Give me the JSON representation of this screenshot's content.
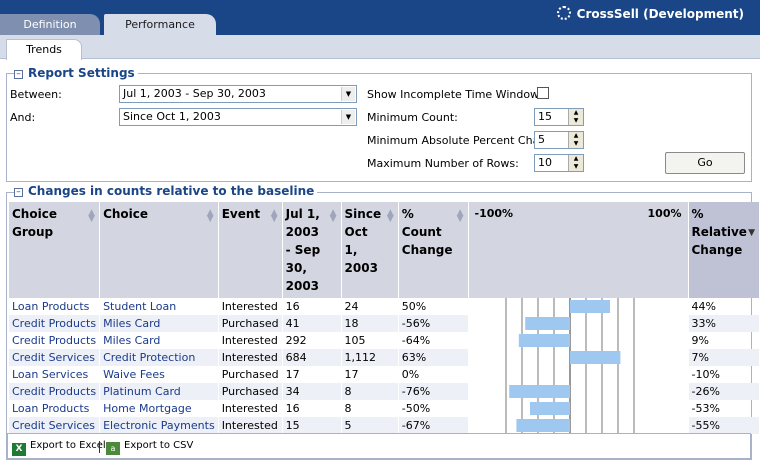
{
  "tabs": [
    {
      "label": "Definition"
    },
    {
      "label": "Performance"
    }
  ],
  "brand": "CrossSell (Development)",
  "subtabs": [
    {
      "label": "Trends"
    }
  ],
  "report_settings": {
    "title": "Report Settings",
    "between_label": "Between:",
    "between_value": "Jul 1, 2003 - Sep 30, 2003",
    "and_label": "And:",
    "and_value": "Since Oct 1, 2003",
    "incomplete_label": "Show Incomplete Time Window:",
    "incomplete_checked": false,
    "min_count_label": "Minimum Count:",
    "min_count_value": "15",
    "min_abs_pct_label": "Minimum Absolute Percent Change",
    "min_abs_pct_value": "5",
    "max_rows_label": "Maximum Number of Rows:",
    "max_rows_value": "10",
    "go_label": "Go"
  },
  "changes": {
    "title": "Changes in counts relative to the baseline",
    "headers": {
      "group": "Choice Group",
      "choice": "Choice",
      "event": "Event",
      "period1": "Jul 1, 2003 - Sep 30, 2003",
      "period2": "Since Oct 1, 2003",
      "pct_count": "% Count Change",
      "bar_left": "-100%",
      "bar_right": "100%",
      "relative": "% Relative Change"
    },
    "rows": [
      {
        "group": "Loan Products",
        "choice": "Student Loan",
        "event": "Interested",
        "p1": "16",
        "p2": "24",
        "pct": "50%",
        "pct_value": 50,
        "rel": "44%"
      },
      {
        "group": "Credit Products",
        "choice": "Miles Card",
        "event": "Purchased",
        "p1": "41",
        "p2": "18",
        "pct": "-56%",
        "pct_value": -56,
        "rel": "33%"
      },
      {
        "group": "Credit Products",
        "choice": "Miles Card",
        "event": "Interested",
        "p1": "292",
        "p2": "105",
        "pct": "-64%",
        "pct_value": -64,
        "rel": "9%"
      },
      {
        "group": "Credit Services",
        "choice": "Credit Protection",
        "event": "Interested",
        "p1": "684",
        "p2": "1,112",
        "pct": "63%",
        "pct_value": 63,
        "rel": "7%"
      },
      {
        "group": "Loan Services",
        "choice": "Waive Fees",
        "event": "Purchased",
        "p1": "17",
        "p2": "17",
        "pct": "0%",
        "pct_value": 0,
        "rel": "-10%"
      },
      {
        "group": "Credit Products",
        "choice": "Platinum Card",
        "event": "Purchased",
        "p1": "34",
        "p2": "8",
        "pct": "-76%",
        "pct_value": -76,
        "rel": "-26%"
      },
      {
        "group": "Loan Products",
        "choice": "Home Mortgage",
        "event": "Interested",
        "p1": "16",
        "p2": "8",
        "pct": "-50%",
        "pct_value": -50,
        "rel": "-53%"
      },
      {
        "group": "Credit Services",
        "choice": "Electronic Payments",
        "event": "Interested",
        "p1": "15",
        "p2": "5",
        "pct": "-67%",
        "pct_value": -67,
        "rel": "-55%"
      }
    ]
  },
  "footer": {
    "export_excel": "Export to Excel",
    "export_csv": "Export to CSV"
  },
  "colors": {
    "header_bg": "#1a4586",
    "bar_fill": "#9fc8f0",
    "link": "#1a3a8a"
  }
}
